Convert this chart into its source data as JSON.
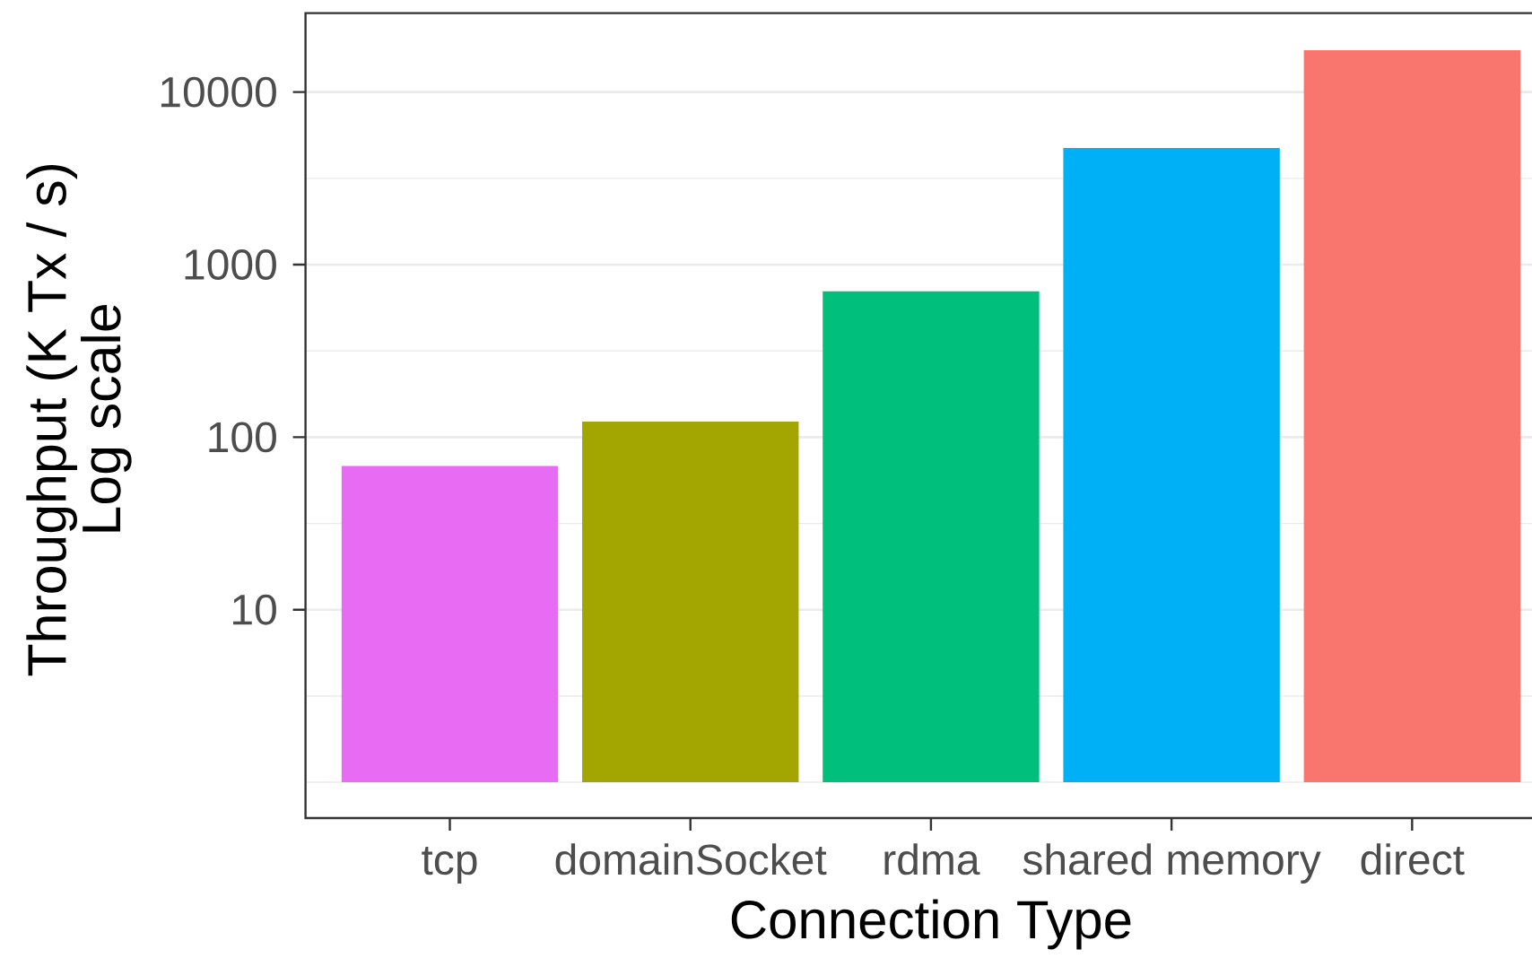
{
  "chart_data": {
    "type": "bar",
    "xlabel": "Connection Type",
    "ylabel": "Throughput (K Tx / s) Log scale",
    "categories": [
      "tcp",
      "domainSocket",
      "rdma",
      "shared memory",
      "direct"
    ],
    "values": [
      67,
      122,
      700,
      4740,
      17500
    ],
    "base": [
      1,
      1,
      1,
      1,
      1
    ],
    "colors": [
      "#e76bf3",
      "#a3a500",
      "#00bf7d",
      "#00b0f6",
      "#f8766d"
    ],
    "log": true,
    "ylim": [
      0.62,
      28700
    ],
    "yticks": [
      {
        "value": 1,
        "label": null
      },
      {
        "value": 3.16,
        "label": null
      },
      10,
      {
        "value": 31.6,
        "label": null
      },
      100,
      {
        "value": 316,
        "label": null
      },
      1000,
      {
        "value": 3160,
        "label": null
      },
      10000
    ],
    "grid": "y"
  }
}
